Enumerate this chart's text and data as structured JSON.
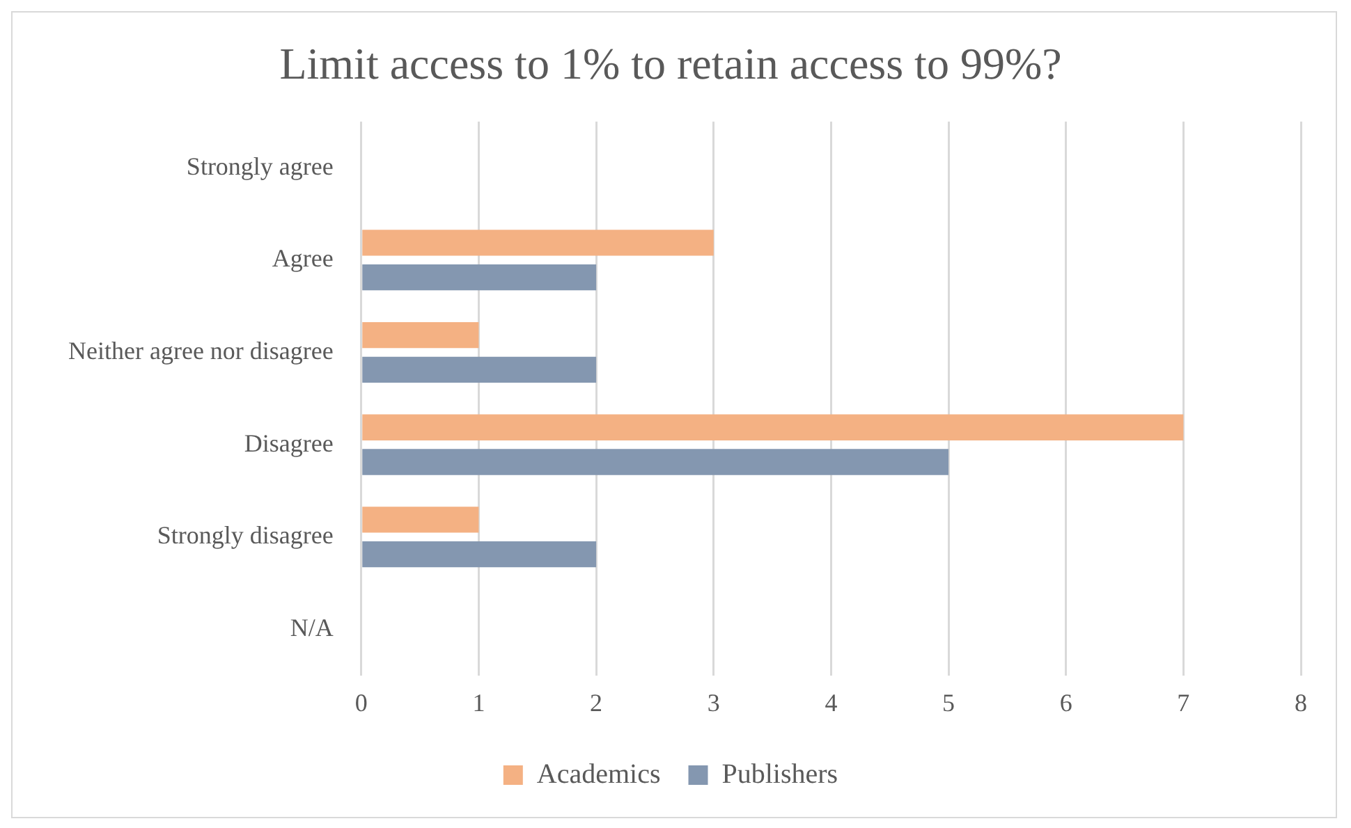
{
  "chart_data": {
    "type": "bar",
    "orientation": "horizontal",
    "title": "Limit access to 1% to retain access to 99%?",
    "categories": [
      "Strongly agree",
      "Agree",
      "Neither agree nor disagree",
      "Disagree",
      "Strongly disagree",
      "N/A"
    ],
    "series": [
      {
        "name": "Academics",
        "color": "#f4b183",
        "values": [
          0,
          3,
          1,
          7,
          1,
          0
        ]
      },
      {
        "name": "Publishers",
        "color": "#8497b0",
        "values": [
          0,
          2,
          2,
          5,
          2,
          0
        ]
      }
    ],
    "xlim": [
      0,
      8
    ],
    "xticks": [
      0,
      1,
      2,
      3,
      4,
      5,
      6,
      7,
      8
    ],
    "grid": "x",
    "legend": "bottom"
  }
}
